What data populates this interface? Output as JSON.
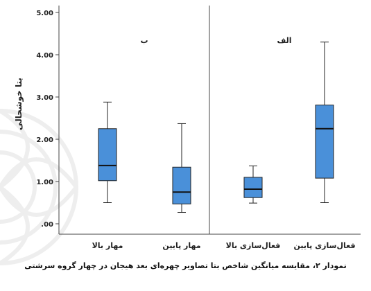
{
  "chart_data": {
    "type": "box",
    "ylim": [
      0,
      5
    ],
    "yticks": [
      {
        "value": 0,
        "label": ".00"
      },
      {
        "value": 1,
        "label": "1.00"
      },
      {
        "value": 2,
        "label": "2.00"
      },
      {
        "value": 3,
        "label": "3.00"
      },
      {
        "value": 4,
        "label": "4.00"
      },
      {
        "value": 5,
        "label": "5.00"
      }
    ],
    "ylabel": "بتا خوشحالی",
    "panels": [
      {
        "label": "ب",
        "categories": [
          "مهار بالا",
          "مهار پایین"
        ]
      },
      {
        "label": "الف",
        "categories": [
          "فعال‌سازی بالا",
          "فعال‌سازی پایین"
        ]
      }
    ],
    "boxes": [
      {
        "category": "مهار بالا",
        "min": 0.5,
        "q1": 1.02,
        "median": 1.38,
        "q3": 2.25,
        "max": 2.88
      },
      {
        "category": "مهار پایین",
        "min": 0.27,
        "q1": 0.47,
        "median": 0.75,
        "q3": 1.34,
        "max": 2.37
      },
      {
        "category": "فعال‌سازی بالا",
        "min": 0.49,
        "q1": 0.62,
        "median": 0.82,
        "q3": 1.1,
        "max": 1.37
      },
      {
        "category": "فعال‌سازی پایین",
        "min": 0.5,
        "q1": 1.08,
        "median": 2.25,
        "q3": 2.81,
        "max": 4.3
      }
    ],
    "box_color": "#4a90d9",
    "grid": false
  },
  "caption": "نمودار ۲، مقایسه میانگین شاخص بتا تصاویر چهره‌ای بعد هیجان در چهار گروه سرشتی"
}
